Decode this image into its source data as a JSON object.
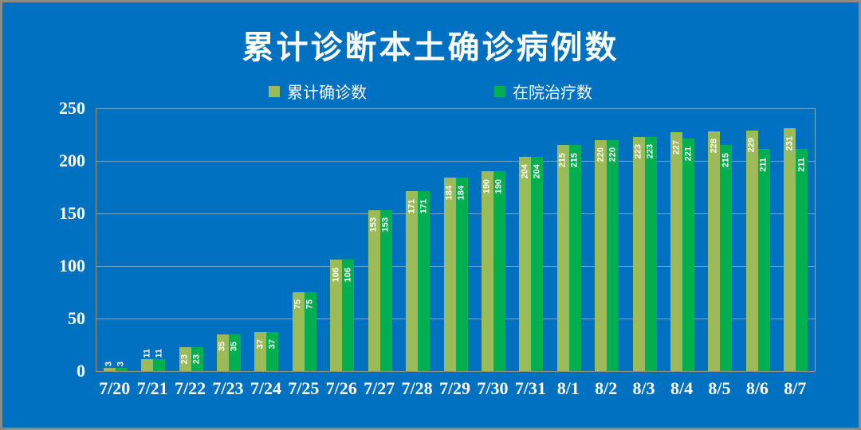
{
  "frame": {
    "background_color": "#0070C0",
    "border_color": "#8a8a8a"
  },
  "title": "累计诊断本土确诊病例数",
  "chart_data": {
    "type": "bar",
    "title": "累计诊断本土确诊病例数",
    "categories": [
      "7/20",
      "7/21",
      "7/22",
      "7/23",
      "7/24",
      "7/25",
      "7/26",
      "7/27",
      "7/28",
      "7/29",
      "7/30",
      "7/31",
      "8/1",
      "8/2",
      "8/3",
      "8/4",
      "8/5",
      "8/6",
      "8/7"
    ],
    "series": [
      {
        "name": "累计确诊数",
        "color": "#9BBB59",
        "values": [
          3,
          11,
          23,
          35,
          37,
          75,
          106,
          153,
          171,
          184,
          190,
          204,
          215,
          220,
          223,
          227,
          228,
          229,
          231
        ]
      },
      {
        "name": "在院治疗数",
        "color": "#00B050",
        "values": [
          3,
          11,
          23,
          35,
          37,
          75,
          106,
          153,
          171,
          184,
          190,
          204,
          215,
          220,
          223,
          221,
          215,
          211,
          211
        ]
      }
    ],
    "xlabel": "",
    "ylabel": "",
    "ylim": [
      0,
      250
    ],
    "yticks": [
      0,
      50,
      100,
      150,
      200,
      250
    ],
    "grid": true,
    "legend_position": "top-center",
    "data_labels": "rotated-90, white, inside-end (outside when bar too short)",
    "text_color": "#ffffff",
    "gridline_color": "rgba(255,255,255,0.42)",
    "axis_line_color": "#9b9272"
  }
}
